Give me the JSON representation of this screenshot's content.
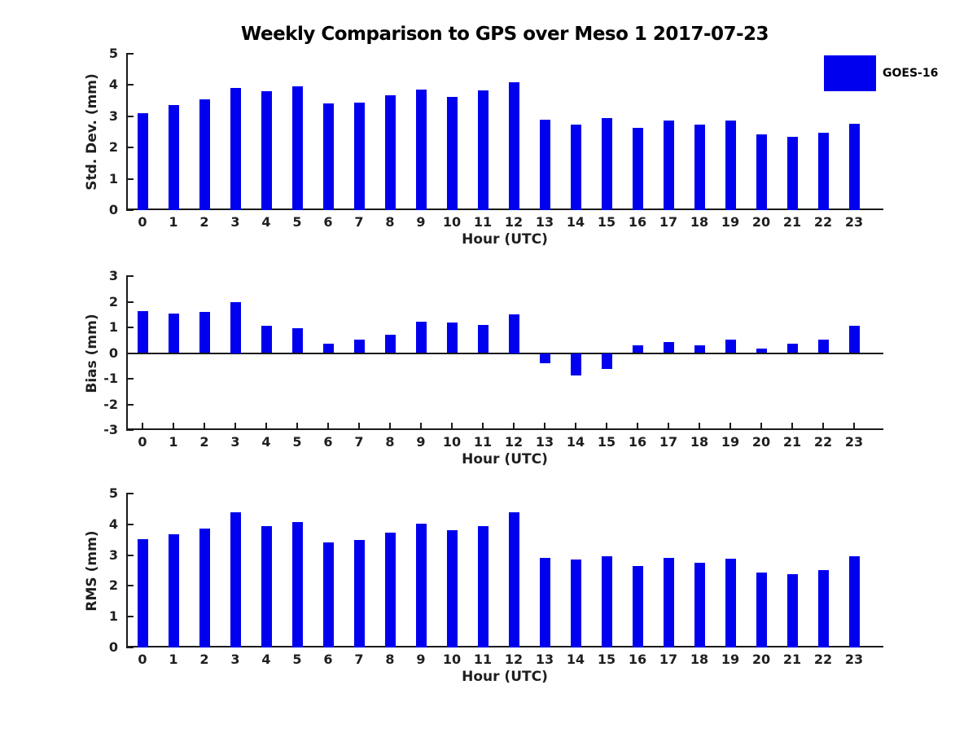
{
  "title": "Weekly Comparison to GPS over Meso 1 2017-07-23",
  "legend": {
    "label": "GOES-16"
  },
  "colors": {
    "bar": "#0000EE",
    "axis": "#1a1a1a",
    "tick_text": "#1f1f1f",
    "title_text": "#000000"
  },
  "hours": [
    0,
    1,
    2,
    3,
    4,
    5,
    6,
    7,
    8,
    9,
    10,
    11,
    12,
    13,
    14,
    15,
    16,
    17,
    18,
    19,
    20,
    21,
    22,
    23
  ],
  "chart_data": [
    {
      "type": "bar",
      "series_name": "GOES-16",
      "ylabel": "Std. Dev. (mm)",
      "xlabel": "Hour (UTC)",
      "ylim": [
        0,
        5
      ],
      "yticks": [
        5,
        4,
        3,
        2,
        1,
        0
      ],
      "x": [
        0,
        1,
        2,
        3,
        4,
        5,
        6,
        7,
        8,
        9,
        10,
        11,
        12,
        13,
        14,
        15,
        16,
        17,
        18,
        19,
        20,
        21,
        22,
        23
      ],
      "values": [
        3.1,
        3.35,
        3.53,
        3.9,
        3.79,
        3.97,
        3.4,
        3.45,
        3.68,
        3.85,
        3.63,
        3.82,
        4.1,
        2.9,
        2.74,
        2.93,
        2.64,
        2.87,
        2.74,
        2.87,
        2.42,
        2.35,
        2.48,
        2.77
      ]
    },
    {
      "type": "bar",
      "series_name": "GOES-16",
      "ylabel": "Bias (mm)",
      "xlabel": "Hour (UTC)",
      "ylim": [
        -3,
        3
      ],
      "yticks": [
        3,
        2,
        1,
        0,
        -1,
        -2,
        -3
      ],
      "x": [
        0,
        1,
        2,
        3,
        4,
        5,
        6,
        7,
        8,
        9,
        10,
        11,
        12,
        13,
        14,
        15,
        16,
        17,
        18,
        19,
        20,
        21,
        22,
        23
      ],
      "values": [
        1.65,
        1.53,
        1.6,
        2.0,
        1.06,
        0.97,
        0.37,
        0.52,
        0.73,
        1.22,
        1.19,
        1.1,
        1.5,
        -0.41,
        -0.87,
        -0.62,
        0.31,
        0.42,
        0.29,
        0.53,
        0.19,
        0.38,
        0.53,
        1.05
      ]
    },
    {
      "type": "bar",
      "series_name": "GOES-16",
      "ylabel": "RMS (mm)",
      "xlabel": "Hour (UTC)",
      "ylim": [
        0,
        5
      ],
      "yticks": [
        5,
        4,
        3,
        2,
        1,
        0
      ],
      "x": [
        0,
        1,
        2,
        3,
        4,
        5,
        6,
        7,
        8,
        9,
        10,
        11,
        12,
        13,
        14,
        15,
        16,
        17,
        18,
        19,
        20,
        21,
        22,
        23
      ],
      "values": [
        3.51,
        3.67,
        3.85,
        4.38,
        3.93,
        4.08,
        3.41,
        3.48,
        3.74,
        4.03,
        3.82,
        3.95,
        4.38,
        2.91,
        2.87,
        2.97,
        2.65,
        2.9,
        2.75,
        2.89,
        2.44,
        2.37,
        2.51,
        2.95
      ]
    }
  ]
}
